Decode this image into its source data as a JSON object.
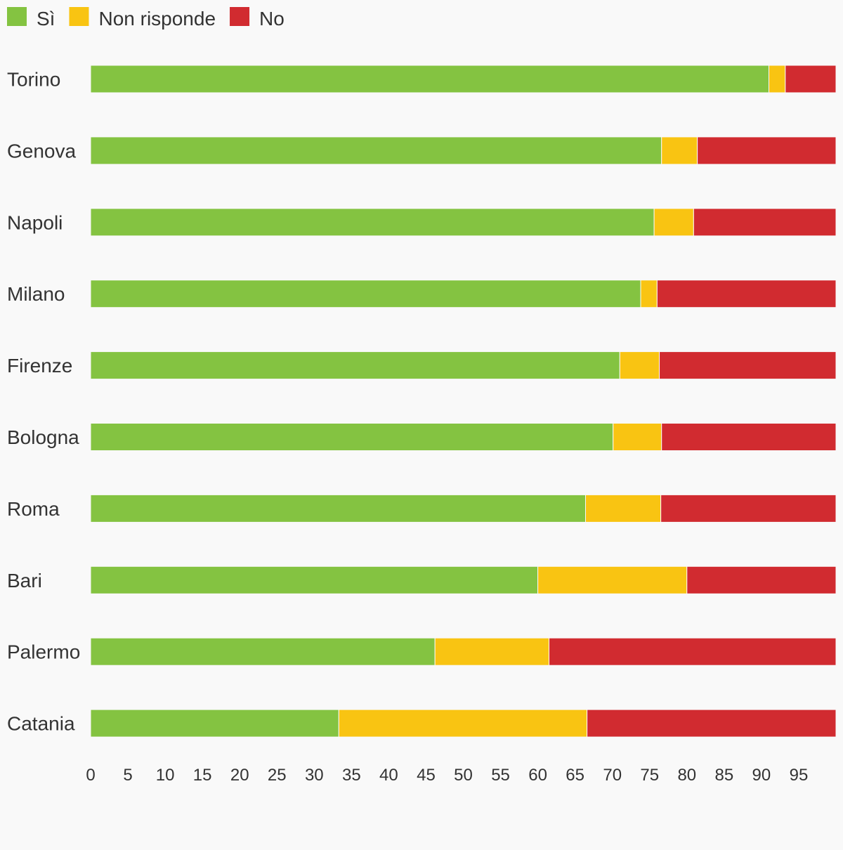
{
  "chart_data": {
    "type": "bar",
    "orientation": "horizontal",
    "stacked": true,
    "categories": [
      "Torino",
      "Genova",
      "Napoli",
      "Milano",
      "Firenze",
      "Bologna",
      "Roma",
      "Bari",
      "Palermo",
      "Catania"
    ],
    "series": [
      {
        "name": "Sì",
        "color": "#84c341",
        "values": [
          91.0,
          76.6,
          75.6,
          73.8,
          71.0,
          70.1,
          66.4,
          60.0,
          46.2,
          33.3
        ]
      },
      {
        "name": "Non risponde",
        "color": "#f9c412",
        "values": [
          2.2,
          4.8,
          5.3,
          2.2,
          5.3,
          6.5,
          10.1,
          20.0,
          15.3,
          33.3
        ]
      },
      {
        "name": "No",
        "color": "#d12b30",
        "values": [
          6.8,
          18.6,
          19.1,
          24.0,
          23.7,
          23.4,
          23.5,
          20.0,
          38.5,
          33.4
        ]
      }
    ],
    "xlim": [
      0,
      100
    ],
    "xticks": [
      0,
      5,
      10,
      15,
      20,
      25,
      30,
      35,
      40,
      45,
      50,
      55,
      60,
      65,
      70,
      75,
      80,
      85,
      90,
      95
    ],
    "legend_position": "top-left",
    "grid": false
  }
}
